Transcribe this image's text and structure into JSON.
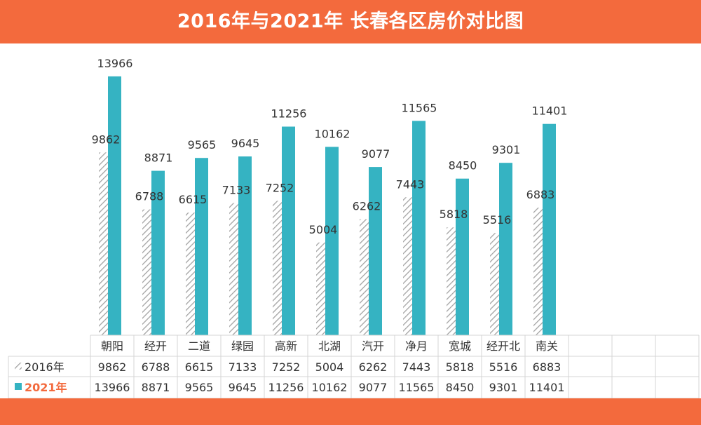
{
  "header": {
    "title": "2016年与2021年 长春各区房价对比图"
  },
  "colors": {
    "banner": "#f36a3d",
    "series2021": "#35b3c2",
    "hatch": "#9a9a9a",
    "legend2021_text": "#f36a3d",
    "grid": "#d4d4d4"
  },
  "chart_data": {
    "type": "bar",
    "title": "2016年与2021年 长春各区房价对比图",
    "categories": [
      "朝阳",
      "经开",
      "二道",
      "绿园",
      "高新",
      "北湖",
      "汽开",
      "净月",
      "宽城",
      "经开北",
      "南关"
    ],
    "series": [
      {
        "name": "2016年",
        "style": "hatched",
        "values": [
          9862,
          6788,
          6615,
          7133,
          7252,
          5004,
          6262,
          7443,
          5818,
          5516,
          6883
        ]
      },
      {
        "name": "2021年",
        "style": "solid",
        "values": [
          13966,
          8871,
          9565,
          9645,
          11256,
          10162,
          9077,
          11565,
          8450,
          9301,
          11401
        ]
      }
    ],
    "ylim": [
      0,
      14000
    ],
    "grid": false,
    "legend": "data-table-rows",
    "xlabel": "",
    "ylabel": ""
  }
}
